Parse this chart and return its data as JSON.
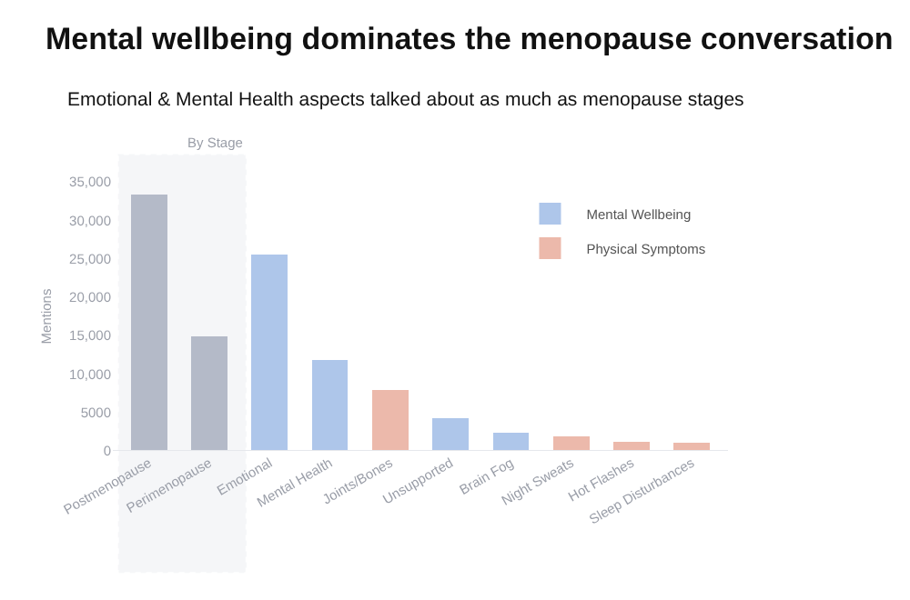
{
  "chart_data": {
    "type": "bar",
    "title": "Mental wellbeing dominates the menopause conversation",
    "subtitle": "Emotional & Mental Health aspects talked about as much as menopause stages",
    "ylabel": "Mentions",
    "categories": [
      "Postmenopause",
      "Perimenopause",
      "Emotional",
      "Mental Health",
      "Joints/Bones",
      "Unsupported",
      "Brain Fog",
      "Night Sweats",
      "Hot Flashes",
      "Sleep Disturbances"
    ],
    "stacked": true,
    "series": [
      {
        "color": "#b4bac8",
        "values": [
          33300,
          14900,
          null,
          null,
          null,
          null,
          null,
          null,
          null,
          null
        ]
      },
      {
        "name": "Mental Wellbeing",
        "color": "#aec6ea",
        "values": [
          null,
          null,
          25500,
          11800,
          null,
          4300,
          2400,
          null,
          null,
          null
        ]
      },
      {
        "name": "Physical Symptoms",
        "color": "#ecb9ab",
        "values": [
          null,
          null,
          null,
          null,
          7900,
          null,
          null,
          1900,
          1200,
          1100
        ]
      }
    ],
    "ylim": [
      0,
      35000
    ],
    "yticks": [
      0,
      5000,
      {
        "value": 10000,
        "label": "10,000"
      },
      {
        "value": 15000,
        "label": "15,000"
      },
      {
        "value": 20000,
        "label": "20,000"
      },
      {
        "value": 25000,
        "label": "25,000"
      },
      {
        "value": 30000,
        "label": "30,000"
      },
      {
        "value": 35000,
        "label": "35,000"
      }
    ],
    "bands": [
      {
        "axis": "x",
        "from": "Postmenopause",
        "to": "Perimenopause",
        "label": "By Stage",
        "color": "#d8dce4"
      }
    ],
    "grid": false,
    "legend": "top right"
  }
}
